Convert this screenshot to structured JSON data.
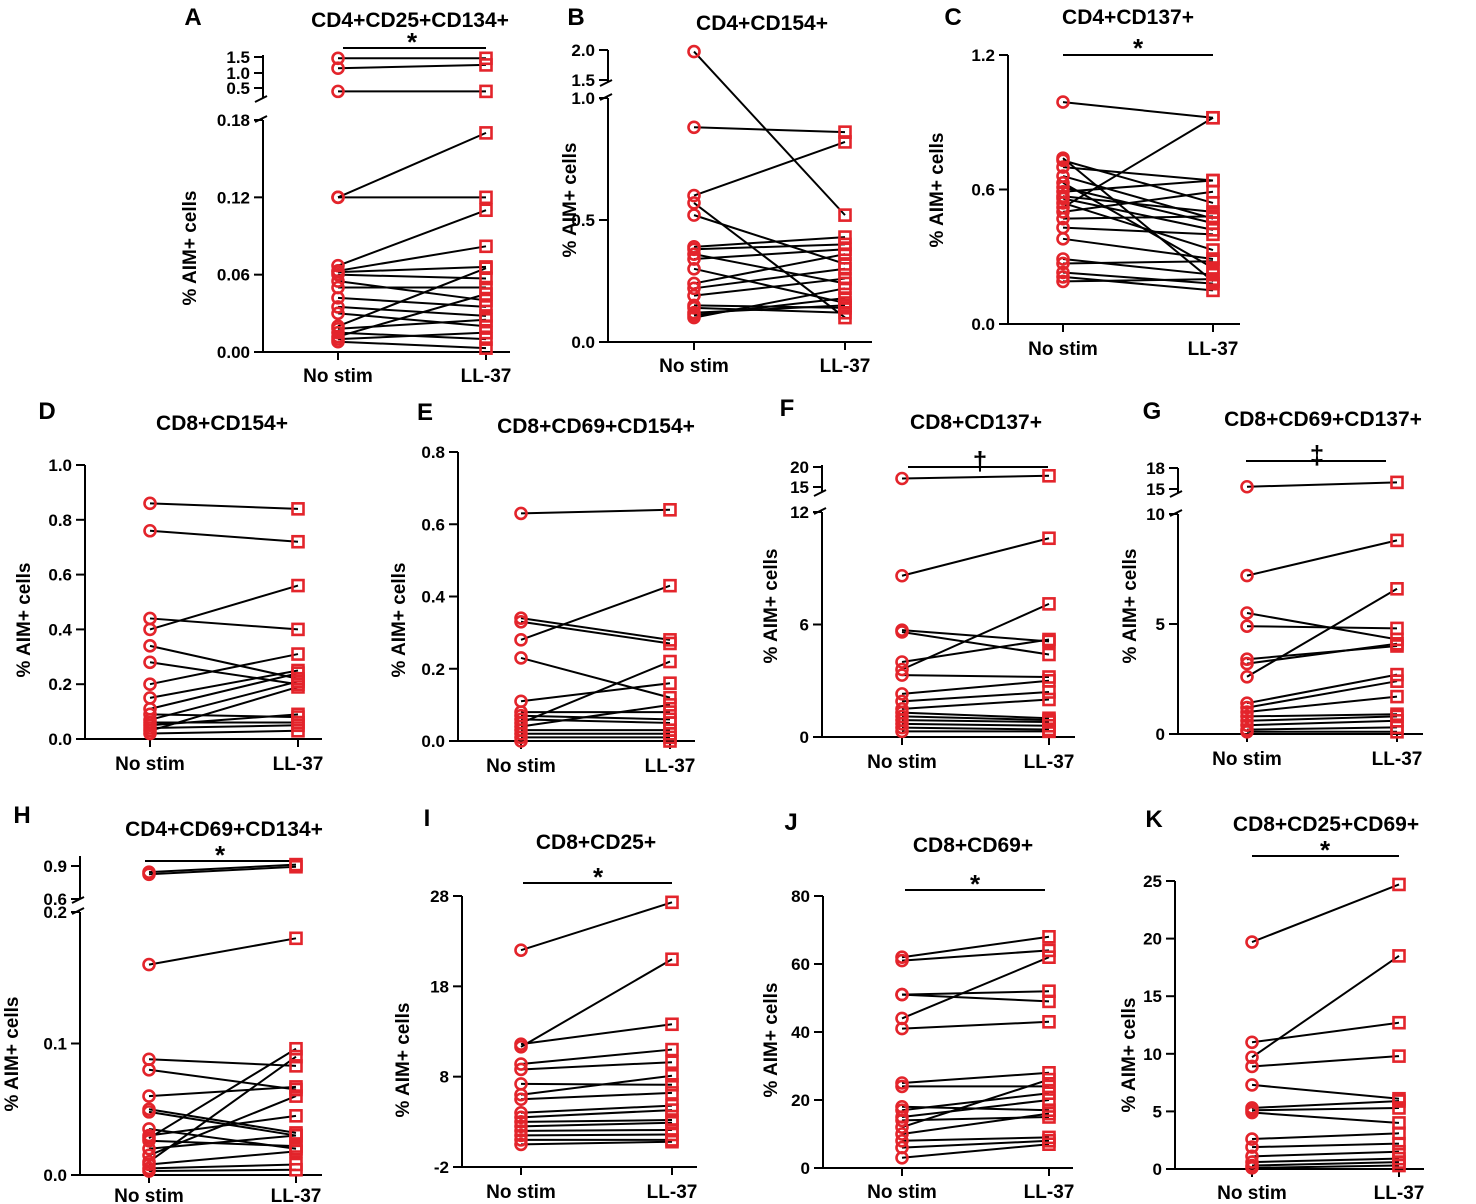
{
  "figure": {
    "y_axis_title": "% AIM+ cells",
    "colors": {
      "markers": "#e3242b",
      "lines": "#000000"
    }
  },
  "chart_data": [
    {
      "id": "A",
      "type": "scatter",
      "title": "CD4+CD25+CD134+",
      "categories": [
        "No stim",
        "LL-37"
      ],
      "ylabel": "% AIM+ cells",
      "significance": "*",
      "segments": [
        {
          "ylim": [
            0,
            0.18
          ],
          "ticks": [
            "0.00",
            "0.06",
            "0.12",
            "0.18"
          ]
        },
        {
          "ylim": [
            0.3,
            1.6
          ],
          "ticks": [
            "0.5",
            "1.0",
            "1.5"
          ]
        }
      ],
      "pairs": [
        [
          1.5,
          1.5
        ],
        [
          1.2,
          1.3
        ],
        [
          0.5,
          0.5
        ],
        [
          0.12,
          0.17
        ],
        [
          0.12,
          0.12
        ],
        [
          0.067,
          0.11
        ],
        [
          0.063,
          0.082
        ],
        [
          0.062,
          0.066
        ],
        [
          0.06,
          0.057
        ],
        [
          0.055,
          0.04
        ],
        [
          0.05,
          0.05
        ],
        [
          0.042,
          0.035
        ],
        [
          0.035,
          0.028
        ],
        [
          0.03,
          0.02
        ],
        [
          0.02,
          0.065
        ],
        [
          0.018,
          0.025
        ],
        [
          0.015,
          0.01
        ],
        [
          0.012,
          0.045
        ],
        [
          0.01,
          0.015
        ],
        [
          0.008,
          0.003
        ]
      ]
    },
    {
      "id": "B",
      "type": "scatter",
      "title": "CD4+CD154+",
      "categories": [
        "No stim",
        "LL-37"
      ],
      "ylabel": "% AIM+ cells",
      "significance": "",
      "segments": [
        {
          "ylim": [
            0,
            1.0
          ],
          "ticks": [
            "0.0",
            "0.5",
            "1.0"
          ]
        },
        {
          "ylim": [
            1.0,
            2.0
          ],
          "ticks": [
            "1.5",
            "2.0"
          ]
        }
      ],
      "pairs": [
        [
          1.95,
          0.52
        ],
        [
          0.88,
          0.86
        ],
        [
          0.6,
          0.82
        ],
        [
          0.57,
          0.1
        ],
        [
          0.52,
          0.32
        ],
        [
          0.39,
          0.43
        ],
        [
          0.38,
          0.4
        ],
        [
          0.36,
          0.24
        ],
        [
          0.34,
          0.38
        ],
        [
          0.3,
          0.16
        ],
        [
          0.24,
          0.36
        ],
        [
          0.22,
          0.3
        ],
        [
          0.19,
          0.26
        ],
        [
          0.15,
          0.14
        ],
        [
          0.14,
          0.12
        ],
        [
          0.12,
          0.15
        ],
        [
          0.11,
          0.18
        ],
        [
          0.1,
          0.22
        ]
      ]
    },
    {
      "id": "C",
      "type": "scatter",
      "title": "CD4+CD137+",
      "categories": [
        "No stim",
        "LL-37"
      ],
      "ylabel": "% AIM+ cells",
      "significance": "*",
      "segments": [
        {
          "ylim": [
            0,
            1.2
          ],
          "ticks": [
            "0.0",
            "0.6",
            "1.2"
          ]
        }
      ],
      "pairs": [
        [
          0.99,
          0.92
        ],
        [
          0.74,
          0.19
        ],
        [
          0.73,
          0.54
        ],
        [
          0.7,
          0.64
        ],
        [
          0.66,
          0.47
        ],
        [
          0.63,
          0.25
        ],
        [
          0.61,
          0.45
        ],
        [
          0.59,
          0.64
        ],
        [
          0.57,
          0.5
        ],
        [
          0.56,
          0.42
        ],
        [
          0.54,
          0.33
        ],
        [
          0.52,
          0.92
        ],
        [
          0.5,
          0.59
        ],
        [
          0.47,
          0.48
        ],
        [
          0.43,
          0.4
        ],
        [
          0.38,
          0.29
        ],
        [
          0.29,
          0.22
        ],
        [
          0.27,
          0.28
        ],
        [
          0.23,
          0.18
        ],
        [
          0.21,
          0.15
        ],
        [
          0.19,
          0.2
        ]
      ]
    },
    {
      "id": "D",
      "type": "scatter",
      "title": "CD8+CD154+",
      "categories": [
        "No stim",
        "LL-37"
      ],
      "ylabel": "% AIM+ cells",
      "significance": "",
      "segments": [
        {
          "ylim": [
            0,
            1.0
          ],
          "ticks": [
            "0.0",
            "0.2",
            "0.4",
            "0.6",
            "0.8",
            "1.0"
          ]
        }
      ],
      "pairs": [
        [
          0.86,
          0.84
        ],
        [
          0.76,
          0.72
        ],
        [
          0.44,
          0.4
        ],
        [
          0.4,
          0.56
        ],
        [
          0.34,
          0.22
        ],
        [
          0.28,
          0.2
        ],
        [
          0.2,
          0.31
        ],
        [
          0.15,
          0.25
        ],
        [
          0.11,
          0.24
        ],
        [
          0.09,
          0.08
        ],
        [
          0.07,
          0.21
        ],
        [
          0.06,
          0.06
        ],
        [
          0.05,
          0.09
        ],
        [
          0.04,
          0.05
        ],
        [
          0.03,
          0.19
        ],
        [
          0.02,
          0.03
        ]
      ]
    },
    {
      "id": "E",
      "type": "scatter",
      "title": "CD8+CD69+CD154+",
      "categories": [
        "No stim",
        "LL-37"
      ],
      "ylabel": "% AIM+ cells",
      "significance": "",
      "segments": [
        {
          "ylim": [
            0,
            0.8
          ],
          "ticks": [
            "0.0",
            "0.2",
            "0.4",
            "0.6",
            "0.8"
          ]
        }
      ],
      "pairs": [
        [
          0.63,
          0.64
        ],
        [
          0.34,
          0.28
        ],
        [
          0.33,
          0.27
        ],
        [
          0.28,
          0.43
        ],
        [
          0.23,
          0.12
        ],
        [
          0.11,
          0.16
        ],
        [
          0.08,
          0.08
        ],
        [
          0.07,
          0.06
        ],
        [
          0.06,
          0.05
        ],
        [
          0.05,
          0.22
        ],
        [
          0.04,
          0.1
        ],
        [
          0.03,
          0.03
        ],
        [
          0.02,
          0.02
        ],
        [
          0.01,
          0.01
        ],
        [
          0.0,
          0.0
        ]
      ]
    },
    {
      "id": "F",
      "type": "scatter",
      "title": "CD8+CD137+",
      "categories": [
        "No stim",
        "LL-37"
      ],
      "ylabel": "% AIM+ cells",
      "significance": "†",
      "segments": [
        {
          "ylim": [
            0,
            12
          ],
          "ticks": [
            "0",
            "6",
            "12"
          ]
        },
        {
          "ylim": [
            13,
            20
          ],
          "ticks": [
            "15",
            "20"
          ]
        }
      ],
      "pairs": [
        [
          16.5,
          17.2
        ],
        [
          8.6,
          10.6
        ],
        [
          5.7,
          5.1
        ],
        [
          5.6,
          4.4
        ],
        [
          4.0,
          5.2
        ],
        [
          3.6,
          7.1
        ],
        [
          3.3,
          3.2
        ],
        [
          2.3,
          3.0
        ],
        [
          1.9,
          2.4
        ],
        [
          1.5,
          2.0
        ],
        [
          1.3,
          1.0
        ],
        [
          1.1,
          0.9
        ],
        [
          0.9,
          0.8
        ],
        [
          0.7,
          0.6
        ],
        [
          0.5,
          0.4
        ],
        [
          0.3,
          0.3
        ]
      ]
    },
    {
      "id": "G",
      "type": "scatter",
      "title": "CD8+CD69+CD137+",
      "categories": [
        "No stim",
        "LL-37"
      ],
      "ylabel": "% AIM+ cells",
      "significance": "‡",
      "segments": [
        {
          "ylim": [
            0,
            10
          ],
          "ticks": [
            "0",
            "5",
            "10"
          ]
        },
        {
          "ylim": [
            14,
            18
          ],
          "ticks": [
            "15",
            "18"
          ]
        }
      ],
      "pairs": [
        [
          15.0,
          15.7
        ],
        [
          7.2,
          8.8
        ],
        [
          5.5,
          4.3
        ],
        [
          4.9,
          4.8
        ],
        [
          3.4,
          4.0
        ],
        [
          3.2,
          4.1
        ],
        [
          2.6,
          6.6
        ],
        [
          1.4,
          2.7
        ],
        [
          1.2,
          2.4
        ],
        [
          1.0,
          1.7
        ],
        [
          0.8,
          0.9
        ],
        [
          0.6,
          0.8
        ],
        [
          0.4,
          0.6
        ],
        [
          0.2,
          0.3
        ],
        [
          0.1,
          0.1
        ]
      ]
    },
    {
      "id": "H",
      "type": "scatter",
      "title": "CD4+CD69+CD134+",
      "categories": [
        "No stim",
        "LL-37"
      ],
      "ylabel": "% AIM+ cells",
      "significance": "*",
      "segments": [
        {
          "ylim": [
            0,
            0.2
          ],
          "ticks": [
            "0.0",
            "0.1",
            "0.2"
          ]
        },
        {
          "ylim": [
            0.5,
            0.9
          ],
          "ticks": [
            "0.6",
            "0.9"
          ]
        }
      ],
      "pairs": [
        [
          0.75,
          0.82
        ],
        [
          0.73,
          0.8
        ],
        [
          0.16,
          0.18
        ],
        [
          0.088,
          0.083
        ],
        [
          0.08,
          0.065
        ],
        [
          0.06,
          0.067
        ],
        [
          0.05,
          0.032
        ],
        [
          0.048,
          0.03
        ],
        [
          0.035,
          0.02
        ],
        [
          0.03,
          0.045
        ],
        [
          0.028,
          0.096
        ],
        [
          0.026,
          0.022
        ],
        [
          0.02,
          0.03
        ],
        [
          0.015,
          0.06
        ],
        [
          0.01,
          0.09
        ],
        [
          0.008,
          0.018
        ],
        [
          0.005,
          0.008
        ],
        [
          0.003,
          0.004
        ]
      ]
    },
    {
      "id": "I",
      "type": "scatter",
      "title": "CD8+CD25+",
      "categories": [
        "No stim",
        "LL-37"
      ],
      "ylabel": "% AIM+ cells",
      "significance": "*",
      "segments": [
        {
          "ylim": [
            -2,
            28
          ],
          "ticks": [
            "-2",
            "8",
            "18",
            "28"
          ]
        }
      ],
      "pairs": [
        [
          22.0,
          27.3
        ],
        [
          11.6,
          13.8
        ],
        [
          11.3,
          21.0
        ],
        [
          9.4,
          11.0
        ],
        [
          8.8,
          9.6
        ],
        [
          7.2,
          7.1
        ],
        [
          6.0,
          8.1
        ],
        [
          5.5,
          6.2
        ],
        [
          4.0,
          4.8
        ],
        [
          3.5,
          4.3
        ],
        [
          3.0,
          3.2
        ],
        [
          2.5,
          2.9
        ],
        [
          2.0,
          2.1
        ],
        [
          1.5,
          1.6
        ],
        [
          1.0,
          1.0
        ],
        [
          0.5,
          0.8
        ]
      ]
    },
    {
      "id": "J",
      "type": "scatter",
      "title": "CD8+CD69+",
      "categories": [
        "No stim",
        "LL-37"
      ],
      "ylabel": "% AIM+ cells",
      "significance": "*",
      "segments": [
        {
          "ylim": [
            0,
            80
          ],
          "ticks": [
            "0",
            "20",
            "40",
            "60",
            "80"
          ]
        }
      ],
      "pairs": [
        [
          62,
          68
        ],
        [
          61,
          64
        ],
        [
          51,
          52
        ],
        [
          51,
          49
        ],
        [
          44,
          62
        ],
        [
          41,
          43
        ],
        [
          25,
          28
        ],
        [
          24,
          24
        ],
        [
          18,
          17
        ],
        [
          17,
          22
        ],
        [
          15,
          20
        ],
        [
          14,
          15
        ],
        [
          12,
          26
        ],
        [
          10,
          16
        ],
        [
          8,
          9
        ],
        [
          6,
          8
        ],
        [
          3,
          7
        ]
      ]
    },
    {
      "id": "K",
      "type": "scatter",
      "title": "CD8+CD25+CD69+",
      "categories": [
        "No stim",
        "LL-37"
      ],
      "ylabel": "% AIM+ cells",
      "significance": "*",
      "segments": [
        {
          "ylim": [
            0,
            25
          ],
          "ticks": [
            "0",
            "5",
            "10",
            "15",
            "20",
            "25"
          ]
        }
      ],
      "pairs": [
        [
          19.7,
          24.7
        ],
        [
          11.0,
          12.7
        ],
        [
          9.7,
          18.5
        ],
        [
          8.9,
          9.8
        ],
        [
          7.3,
          6.1
        ],
        [
          5.3,
          5.9
        ],
        [
          5.1,
          5.3
        ],
        [
          4.9,
          4.0
        ],
        [
          2.6,
          3.1
        ],
        [
          1.9,
          2.2
        ],
        [
          1.1,
          1.5
        ],
        [
          0.6,
          0.9
        ],
        [
          0.3,
          0.6
        ],
        [
          0.1,
          0.3
        ]
      ]
    }
  ]
}
